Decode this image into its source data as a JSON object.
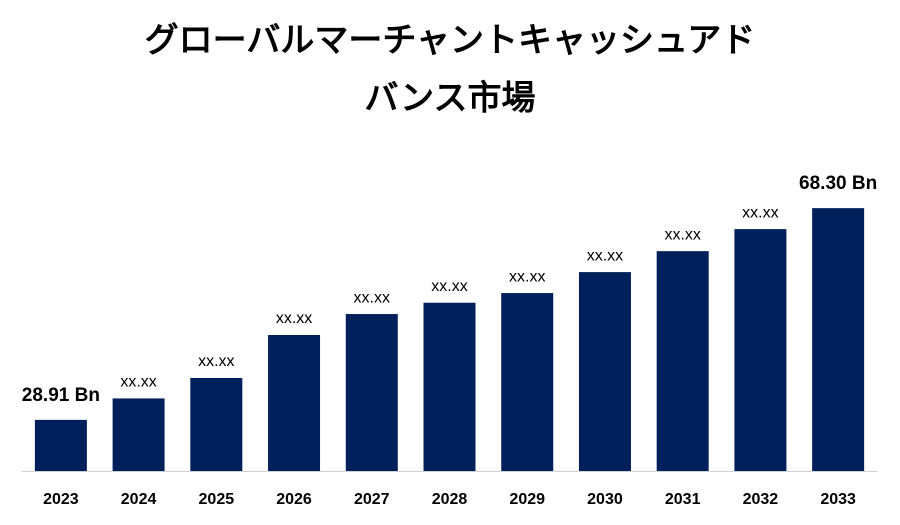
{
  "chart_data": {
    "type": "bar",
    "title": [
      "グローバルマーチャントキャッシュアド",
      "バンス市場"
    ],
    "categories": [
      "2023",
      "2024",
      "2025",
      "2026",
      "2027",
      "2028",
      "2029",
      "2030",
      "2031",
      "2032",
      "2033"
    ],
    "values": [
      28.91,
      32.9,
      36.7,
      44.7,
      48.6,
      50.7,
      52.5,
      56.4,
      60.3,
      64.4,
      68.3
    ],
    "value_labels": [
      "28.91 Bn",
      "xx.xx",
      "xx.xx",
      "xx.xx",
      "xx.xx",
      "xx.xx",
      "xx.xx",
      "xx.xx",
      "xx.xx",
      "xx.xx",
      "68.30 Bn"
    ],
    "color": "#00205b",
    "ylim": [
      19.4,
      70
    ]
  }
}
